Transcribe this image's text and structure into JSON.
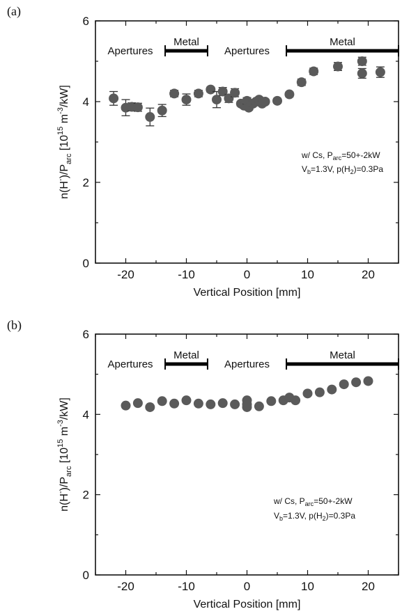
{
  "chart_data": [
    {
      "panel_label": "(a)",
      "type": "scatter",
      "xlabel": "Vertical Position [mm]",
      "ylabel": {
        "main": "n(H",
        "sup1": "-",
        "mid": ")/P",
        "sub": "arc",
        "bracket": " [10",
        "sup2": "15",
        "unit1": " m",
        "sup3": "-3",
        "unit2": "/kW]"
      },
      "xlim": [
        -25,
        25
      ],
      "ylim": [
        0,
        6
      ],
      "xticks": [
        -20,
        -10,
        0,
        10,
        20
      ],
      "yticks": [
        0,
        2,
        4,
        6
      ],
      "regions": [
        {
          "label": "Apertures",
          "x_start": -25,
          "x_end": -13.5,
          "kind": "apertures"
        },
        {
          "label": "Metal",
          "x_start": -13.5,
          "x_end": -6.5,
          "kind": "metal"
        },
        {
          "label": "Apertures",
          "x_start": -6.5,
          "x_end": 6.5,
          "kind": "apertures"
        },
        {
          "label": "Metal",
          "x_start": 6.5,
          "x_end": 25,
          "kind": "metal"
        }
      ],
      "annotation": {
        "line1": {
          "a": "w/ Cs, P",
          "sub": "arc",
          "b": "=50+-2kW"
        },
        "line2": {
          "a": "V",
          "sub": "b",
          "b": "=1.3V, p(H",
          "sub2": "2",
          "c": ")=0.3Pa"
        }
      },
      "points": [
        {
          "x": -22,
          "y": 4.08,
          "err": 0.17
        },
        {
          "x": -20,
          "y": 3.85,
          "err": 0.2
        },
        {
          "x": -19,
          "y": 3.87,
          "err": 0.1
        },
        {
          "x": -18,
          "y": 3.86,
          "err": 0.1
        },
        {
          "x": -16,
          "y": 3.62,
          "err": 0.22
        },
        {
          "x": -14,
          "y": 3.78,
          "err": 0.15
        },
        {
          "x": -12,
          "y": 4.2,
          "err": 0.08
        },
        {
          "x": -10,
          "y": 4.05,
          "err": 0.14
        },
        {
          "x": -8,
          "y": 4.2,
          "err": 0.08
        },
        {
          "x": -6,
          "y": 4.3,
          "err": 0.06
        },
        {
          "x": -5,
          "y": 4.05,
          "err": 0.2
        },
        {
          "x": -4,
          "y": 4.25,
          "err": 0.1
        },
        {
          "x": -3,
          "y": 4.08,
          "err": 0.1
        },
        {
          "x": -2,
          "y": 4.22,
          "err": 0.1
        },
        {
          "x": -1,
          "y": 3.95,
          "err": 0.06
        },
        {
          "x": -0.5,
          "y": 3.9,
          "err": 0.06
        },
        {
          "x": 0,
          "y": 4.02,
          "err": 0.08
        },
        {
          "x": 0.3,
          "y": 3.85,
          "err": 0.06
        },
        {
          "x": 1,
          "y": 3.95,
          "err": 0.06
        },
        {
          "x": 1.5,
          "y": 4.0,
          "err": 0.06
        },
        {
          "x": 2,
          "y": 4.05,
          "err": 0.06
        },
        {
          "x": 2.5,
          "y": 3.95,
          "err": 0.06
        },
        {
          "x": 3,
          "y": 4.0,
          "err": 0.06
        },
        {
          "x": 5,
          "y": 4.02,
          "err": 0.06
        },
        {
          "x": 7,
          "y": 4.18,
          "err": 0.06
        },
        {
          "x": 9,
          "y": 4.48,
          "err": 0.08
        },
        {
          "x": 11,
          "y": 4.75,
          "err": 0.08
        },
        {
          "x": 15,
          "y": 4.87,
          "err": 0.1
        },
        {
          "x": 19,
          "y": 5.0,
          "err": 0.1
        },
        {
          "x": 19,
          "y": 4.7,
          "err": 0.12
        },
        {
          "x": 22,
          "y": 4.73,
          "err": 0.13
        }
      ]
    },
    {
      "panel_label": "(b)",
      "type": "scatter",
      "xlabel": "Vertical Position [mm]",
      "ylabel": {
        "main": "n(H",
        "sup1": "-",
        "mid": ")/P",
        "sub": "arc",
        "bracket": " [10",
        "sup2": "15",
        "unit1": " m",
        "sup3": "-3",
        "unit2": "/kW]"
      },
      "xlim": [
        -25,
        25
      ],
      "ylim": [
        0,
        6
      ],
      "xticks": [
        -20,
        -10,
        0,
        10,
        20
      ],
      "yticks": [
        0,
        2,
        4,
        6
      ],
      "regions": [
        {
          "label": "Apertures",
          "x_start": -25,
          "x_end": -13.5,
          "kind": "apertures"
        },
        {
          "label": "Metal",
          "x_start": -13.5,
          "x_end": -6.5,
          "kind": "metal"
        },
        {
          "label": "Apertures",
          "x_start": -6.5,
          "x_end": 6.5,
          "kind": "apertures"
        },
        {
          "label": "Metal",
          "x_start": 6.5,
          "x_end": 25,
          "kind": "metal"
        }
      ],
      "annotation": {
        "line1": {
          "a": "w/ Cs, P",
          "sub": "arc",
          "b": "=50+-2kW"
        },
        "line2": {
          "a": "V",
          "sub": "b",
          "b": "=1.3V, p(H",
          "sub2": "2",
          "c": ")=0.3Pa"
        }
      },
      "points": [
        {
          "x": -20,
          "y": 4.22,
          "err": 0
        },
        {
          "x": -18,
          "y": 4.28,
          "err": 0
        },
        {
          "x": -16,
          "y": 4.18,
          "err": 0
        },
        {
          "x": -14,
          "y": 4.33,
          "err": 0
        },
        {
          "x": -12,
          "y": 4.27,
          "err": 0
        },
        {
          "x": -10,
          "y": 4.35,
          "err": 0
        },
        {
          "x": -8,
          "y": 4.27,
          "err": 0
        },
        {
          "x": -6,
          "y": 4.25,
          "err": 0
        },
        {
          "x": -4,
          "y": 4.28,
          "err": 0
        },
        {
          "x": -2,
          "y": 4.25,
          "err": 0
        },
        {
          "x": 0,
          "y": 4.35,
          "err": 0
        },
        {
          "x": 0,
          "y": 4.25,
          "err": 0
        },
        {
          "x": 0,
          "y": 4.18,
          "err": 0
        },
        {
          "x": 2,
          "y": 4.2,
          "err": 0
        },
        {
          "x": 4,
          "y": 4.33,
          "err": 0
        },
        {
          "x": 6,
          "y": 4.35,
          "err": 0
        },
        {
          "x": 7,
          "y": 4.42,
          "err": 0
        },
        {
          "x": 8,
          "y": 4.35,
          "err": 0
        },
        {
          "x": 10,
          "y": 4.52,
          "err": 0
        },
        {
          "x": 12,
          "y": 4.55,
          "err": 0
        },
        {
          "x": 14,
          "y": 4.62,
          "err": 0
        },
        {
          "x": 16,
          "y": 4.75,
          "err": 0
        },
        {
          "x": 18,
          "y": 4.8,
          "err": 0
        },
        {
          "x": 20,
          "y": 4.83,
          "err": 0
        }
      ]
    }
  ]
}
